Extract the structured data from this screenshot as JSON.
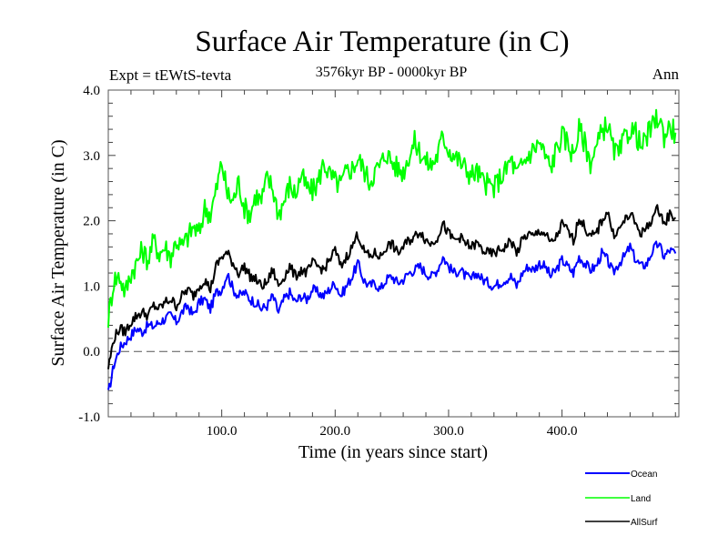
{
  "chart_data": {
    "type": "line",
    "title": "Surface Air Temperature (in C)",
    "subtitle": "3576kyr BP - 0000kyr BP",
    "left_label": "Expt = tEWtS-tevta",
    "right_label": "Ann",
    "xlabel": "Time (in years since start)",
    "ylabel": "Surface Air Temperature (in C)",
    "xlim": [
      0,
      503
    ],
    "ylim": [
      -1.0,
      4.0
    ],
    "x_ticks": [
      100,
      200,
      300,
      400
    ],
    "x_tick_labels": [
      "100.0",
      "200.0",
      "300.0",
      "400.0"
    ],
    "x_minor_step": 20,
    "y_ticks": [
      -1.0,
      0.0,
      1.0,
      2.0,
      3.0,
      4.0
    ],
    "y_tick_labels": [
      "-1.0",
      "0.0",
      "1.0",
      "2.0",
      "3.0",
      "4.0"
    ],
    "y_minor_step": 0.2,
    "reference_line": 0.0,
    "grid": false,
    "legend_position": "bottom-right",
    "x_step": 5,
    "series": [
      {
        "name": "Ocean",
        "color": "#0000ff",
        "values": [
          -0.65,
          -0.2,
          0.05,
          0.15,
          0.25,
          0.35,
          0.3,
          0.4,
          0.38,
          0.45,
          0.5,
          0.55,
          0.45,
          0.6,
          0.7,
          0.55,
          0.75,
          0.8,
          0.65,
          0.9,
          0.95,
          1.2,
          0.95,
          0.85,
          0.9,
          0.8,
          0.75,
          0.65,
          0.7,
          0.85,
          0.6,
          0.8,
          0.9,
          0.75,
          0.85,
          0.8,
          0.95,
          0.9,
          0.85,
          0.95,
          1.05,
          0.85,
          1.0,
          1.15,
          1.35,
          1.1,
          1.0,
          1.05,
          0.95,
          1.1,
          1.15,
          1.05,
          1.1,
          1.2,
          1.25,
          1.3,
          1.2,
          1.15,
          1.25,
          1.45,
          1.3,
          1.2,
          1.25,
          1.15,
          1.1,
          1.2,
          1.1,
          1.05,
          1.0,
          1.05,
          1.1,
          1.15,
          1.0,
          1.2,
          1.3,
          1.25,
          1.35,
          1.3,
          1.15,
          1.25,
          1.4,
          1.3,
          1.2,
          1.45,
          1.35,
          1.25,
          1.3,
          1.5,
          1.4,
          1.2,
          1.35,
          1.45,
          1.6,
          1.4,
          1.3,
          1.35,
          1.55,
          1.65,
          1.45,
          1.55,
          1.5
        ]
      },
      {
        "name": "Land",
        "color": "#00ff00",
        "values": [
          0.5,
          1.1,
          1.15,
          0.9,
          1.2,
          1.35,
          1.55,
          1.4,
          1.7,
          1.5,
          1.6,
          1.45,
          1.7,
          1.6,
          1.75,
          1.9,
          1.8,
          2.2,
          2.1,
          2.45,
          2.9,
          2.4,
          2.3,
          2.6,
          2.2,
          2.1,
          2.4,
          2.3,
          2.65,
          2.5,
          2.1,
          2.3,
          2.55,
          2.4,
          2.7,
          2.5,
          2.45,
          2.6,
          2.9,
          2.7,
          2.6,
          2.55,
          2.75,
          2.8,
          2.95,
          2.8,
          2.6,
          2.75,
          2.85,
          3.05,
          2.9,
          2.8,
          2.75,
          3.0,
          3.2,
          3.05,
          2.9,
          2.85,
          3.0,
          3.3,
          3.1,
          3.0,
          2.9,
          2.8,
          2.7,
          2.75,
          2.6,
          2.55,
          2.5,
          2.65,
          2.75,
          2.95,
          2.7,
          2.85,
          3.0,
          3.1,
          3.2,
          3.0,
          2.8,
          3.1,
          3.3,
          3.2,
          3.0,
          3.4,
          3.2,
          2.9,
          3.1,
          3.35,
          3.5,
          3.1,
          3.0,
          3.25,
          3.4,
          3.35,
          3.1,
          3.3,
          3.45,
          3.6,
          3.3,
          3.45,
          3.35
        ]
      },
      {
        "name": "AllSurf",
        "color": "#000000",
        "values": [
          -0.25,
          0.2,
          0.35,
          0.3,
          0.45,
          0.55,
          0.6,
          0.55,
          0.7,
          0.65,
          0.75,
          0.8,
          0.7,
          0.85,
          0.95,
          0.85,
          1.0,
          1.1,
          0.95,
          1.3,
          1.45,
          1.5,
          1.35,
          1.2,
          1.3,
          1.15,
          1.1,
          1.0,
          1.05,
          1.25,
          1.0,
          1.15,
          1.3,
          1.15,
          1.25,
          1.2,
          1.35,
          1.3,
          1.25,
          1.4,
          1.55,
          1.3,
          1.45,
          1.6,
          1.8,
          1.55,
          1.45,
          1.5,
          1.45,
          1.6,
          1.65,
          1.5,
          1.6,
          1.7,
          1.75,
          1.85,
          1.7,
          1.65,
          1.75,
          1.95,
          1.8,
          1.7,
          1.75,
          1.65,
          1.6,
          1.65,
          1.55,
          1.5,
          1.5,
          1.55,
          1.6,
          1.7,
          1.5,
          1.7,
          1.8,
          1.75,
          1.85,
          1.8,
          1.65,
          1.75,
          1.95,
          1.85,
          1.7,
          2.05,
          1.9,
          1.75,
          1.8,
          2.0,
          2.15,
          1.8,
          1.85,
          2.0,
          2.1,
          1.95,
          1.8,
          1.9,
          2.05,
          2.2,
          1.95,
          2.1,
          2.05
        ]
      }
    ]
  }
}
